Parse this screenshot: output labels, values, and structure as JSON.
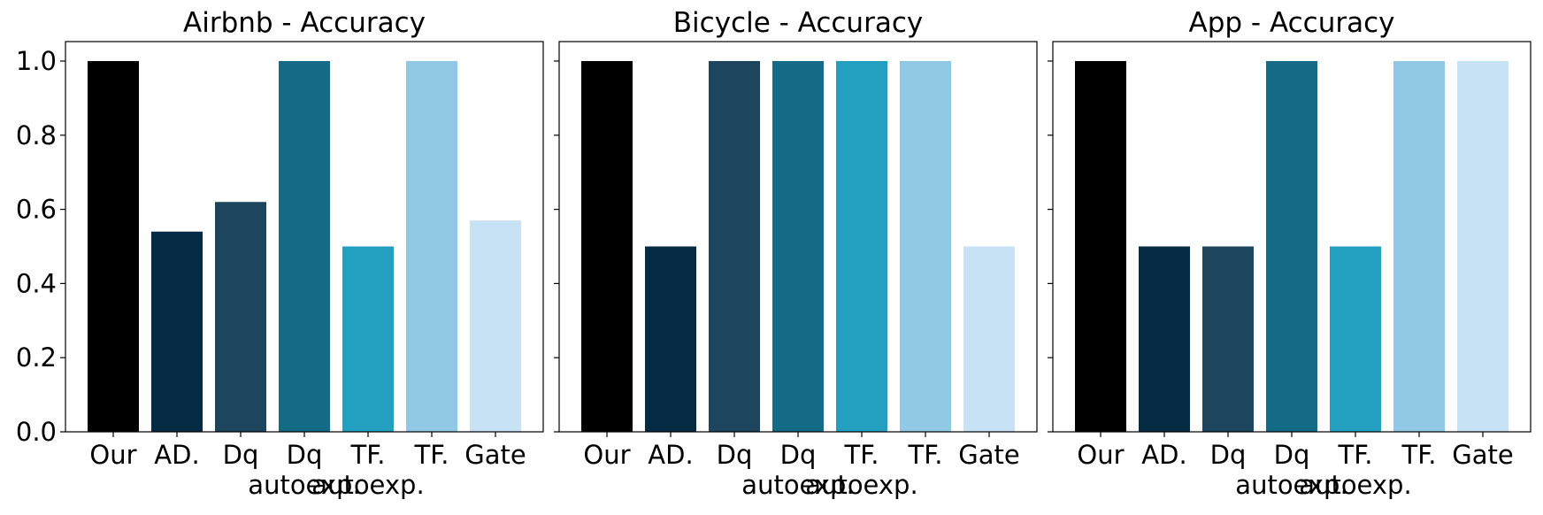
{
  "chart_data": [
    {
      "type": "bar",
      "title": "Airbnb - Accuracy",
      "categories": [
        "Our",
        "AD.",
        "Dq",
        "Dq",
        "TF.",
        "TF.",
        "Gate"
      ],
      "sublabels": [
        "",
        "",
        "",
        "autoexp.",
        "autoexp.",
        "",
        ""
      ],
      "values": [
        1.0,
        0.54,
        0.62,
        1.0,
        0.5,
        1.0,
        0.57
      ],
      "ylim": [
        0,
        1.05
      ],
      "yticks": [
        "0.0",
        "0.2",
        "0.4",
        "0.6",
        "0.8",
        "1.0"
      ],
      "xlabel": "",
      "ylabel": ""
    },
    {
      "type": "bar",
      "title": "Bicycle - Accuracy",
      "categories": [
        "Our",
        "AD.",
        "Dq",
        "Dq",
        "TF.",
        "TF.",
        "Gate"
      ],
      "sublabels": [
        "",
        "",
        "",
        "autoexp.",
        "autoexp.",
        "",
        ""
      ],
      "values": [
        1.0,
        0.5,
        1.0,
        1.0,
        1.0,
        1.0,
        0.5
      ],
      "ylim": [
        0,
        1.05
      ],
      "yticks": [
        "0.0",
        "0.2",
        "0.4",
        "0.6",
        "0.8",
        "1.0"
      ],
      "xlabel": "",
      "ylabel": ""
    },
    {
      "type": "bar",
      "title": "App - Accuracy",
      "categories": [
        "Our",
        "AD.",
        "Dq",
        "Dq",
        "TF.",
        "TF.",
        "Gate"
      ],
      "sublabels": [
        "",
        "",
        "",
        "autoexp.",
        "autoexp.",
        "",
        ""
      ],
      "values": [
        1.0,
        0.5,
        0.5,
        1.0,
        0.5,
        1.0,
        1.0
      ],
      "ylim": [
        0,
        1.05
      ],
      "yticks": [
        "0.0",
        "0.2",
        "0.4",
        "0.6",
        "0.8",
        "1.0"
      ],
      "xlabel": "",
      "ylabel": ""
    }
  ],
  "colors": [
    "#000000",
    "#052a43",
    "#1e455e",
    "#156a85",
    "#23a0bf",
    "#91c8e6",
    "#c6e2f4"
  ]
}
